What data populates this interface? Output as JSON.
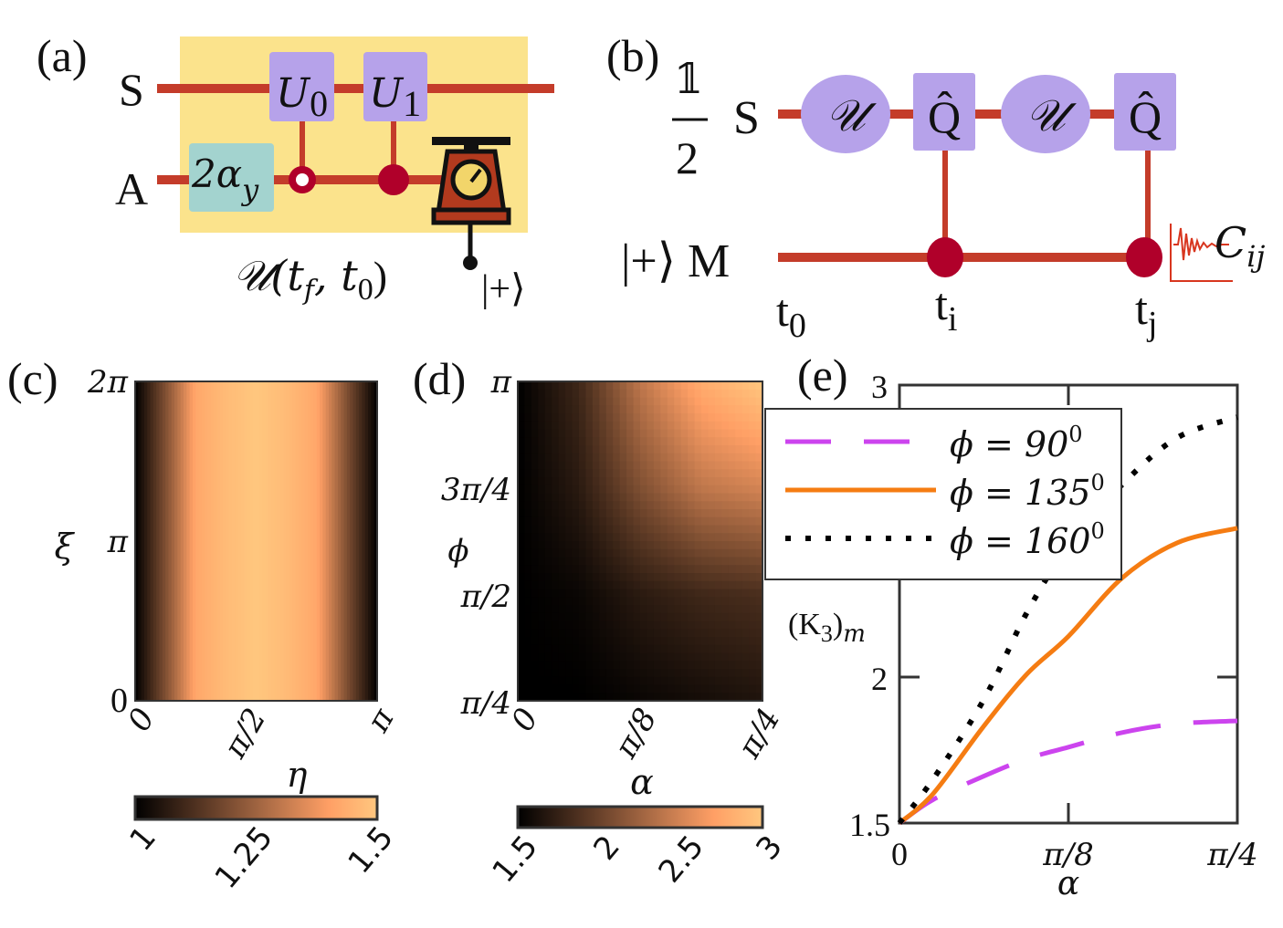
{
  "colors": {
    "wire": "#c43c2a",
    "control_dot": "#b0002a",
    "box_highlight": "#fbe38c",
    "gate_purple": "#b6a2ea",
    "gate_teal": "#a3d3cf",
    "series_90": "#cc44ee",
    "series_135": "#f57c12",
    "series_160": "#000000",
    "colormap": "copper"
  },
  "panel_a": {
    "label": "(a)",
    "wire_s": "S",
    "wire_a": "A",
    "gate_u0": {
      "base": "U",
      "sub": "0"
    },
    "gate_u1": {
      "base": "U",
      "sub": "1"
    },
    "gate_rot": {
      "base": "2α",
      "sub": "y"
    },
    "evolution": {
      "u": "𝒰(t",
      "f": "f",
      "mid": ", t",
      "zero": "0",
      "end": ")"
    },
    "meter_state": "|+⟩",
    "icons": [
      "open-control-icon",
      "filled-control-icon",
      "measurement-scale-icon"
    ]
  },
  "panel_b": {
    "label": "(b)",
    "init_num": "𝟙",
    "init_den": "2",
    "wire_s": "S",
    "wire_m": "|+⟩ M",
    "evo_gate": "𝒰",
    "measure_gate": "Q̂",
    "t0": {
      "base": "t",
      "sub": "0"
    },
    "ti": {
      "base": "t",
      "sub": "i"
    },
    "tj": {
      "base": "t",
      "sub": "j"
    },
    "correlator": {
      "base": "C",
      "sub": "ij"
    },
    "icons": [
      "signal-decay-icon"
    ]
  },
  "chart_data": [
    {
      "panel": "(c)",
      "type": "heatmap",
      "xlabel": "η",
      "ylabel": "ξ",
      "xlim": [
        0,
        3.1416
      ],
      "ylim": [
        0,
        6.2832
      ],
      "xticks": [
        "0",
        "π/2",
        "π"
      ],
      "yticks": [
        "0",
        "π",
        "2π"
      ],
      "colorbar": {
        "range": [
          1,
          1.5
        ],
        "ticks": [
          "1",
          "1.25",
          "1.5"
        ],
        "placement": "bottom",
        "colormap": "copper"
      },
      "eta": [
        0,
        0.3927,
        0.7854,
        1.1781,
        1.5708,
        1.9635,
        2.3562,
        2.7489,
        3.1416
      ],
      "values_vs_eta": [
        1.0,
        1.2,
        1.42,
        1.47,
        1.5,
        1.47,
        1.42,
        1.2,
        1.0
      ],
      "note_constant_in": "ξ"
    },
    {
      "panel": "(d)",
      "type": "heatmap",
      "xlabel": "α",
      "ylabel": "ϕ",
      "xlim": [
        0,
        0.7854
      ],
      "ylim": [
        0.7854,
        3.1416
      ],
      "xticks": [
        "0",
        "π/8",
        "π/4"
      ],
      "yticks": [
        "π/4",
        "π/2",
        "3π/4",
        "π"
      ],
      "colorbar": {
        "range": [
          1.5,
          3
        ],
        "ticks": [
          "1.5",
          "2",
          "2.5",
          "3"
        ],
        "placement": "bottom",
        "colormap": "copper"
      },
      "alpha": [
        0,
        0.1963,
        0.3927,
        0.589,
        0.7854
      ],
      "phi": [
        0.7854,
        1.5708,
        2.3562,
        3.1416
      ],
      "values": [
        [
          1.5,
          1.5,
          1.55,
          1.6,
          1.65
        ],
        [
          1.5,
          1.55,
          1.7,
          1.8,
          1.85
        ],
        [
          1.5,
          1.7,
          2.1,
          2.4,
          2.5
        ],
        [
          1.5,
          1.8,
          2.4,
          2.8,
          3.0
        ]
      ]
    },
    {
      "panel": "(e)",
      "type": "line",
      "xlabel": "α",
      "ylabel": {
        "base": "(K",
        "sub": "3",
        "end": ")",
        "sub2": "m"
      },
      "xlim": [
        0,
        0.7854
      ],
      "ylim": [
        1.5,
        3
      ],
      "xticks": [
        "0",
        "π/8",
        "π/4"
      ],
      "yticks": [
        "1.5",
        "2",
        "3"
      ],
      "grid": false,
      "legend": "top-left",
      "x": [
        0,
        0.078,
        0.195,
        0.296,
        0.393,
        0.518,
        0.646,
        0.7854
      ],
      "series": [
        {
          "name": "ϕ = 90",
          "sup": "0",
          "style": "dashed",
          "color": "#cc44ee",
          "values": [
            1.5,
            1.58,
            1.66,
            1.72,
            1.76,
            1.81,
            1.84,
            1.85
          ]
        },
        {
          "name": "ϕ = 135",
          "sup": "0",
          "style": "solid",
          "color": "#f57c12",
          "values": [
            1.5,
            1.6,
            1.83,
            2.01,
            2.14,
            2.34,
            2.46,
            2.51
          ]
        },
        {
          "name": "ϕ = 160",
          "sup": "0",
          "style": "dotted",
          "color": "#000000",
          "values": [
            1.5,
            1.65,
            1.92,
            2.22,
            2.45,
            2.66,
            2.82,
            2.89
          ]
        }
      ]
    }
  ]
}
